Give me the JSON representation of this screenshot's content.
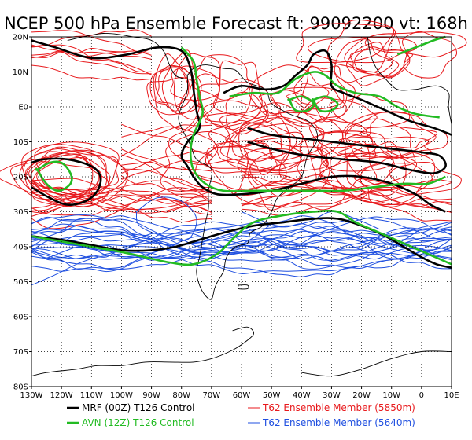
{
  "title": "NCEP 500 hPa Ensemble Forecast  ft: 99092200 vt: 168h",
  "map": {
    "lon_range": [
      -130,
      10
    ],
    "lat_range": [
      -80,
      20
    ],
    "grid_style": "dotted",
    "lat_ticks": [
      {
        "lat": 20,
        "label": "20N"
      },
      {
        "lat": 10,
        "label": "10N"
      },
      {
        "lat": 0,
        "label": "E0"
      },
      {
        "lat": -10,
        "label": "10S"
      },
      {
        "lat": -20,
        "label": "20S"
      },
      {
        "lat": -30,
        "label": "30S"
      },
      {
        "lat": -40,
        "label": "40S"
      },
      {
        "lat": -50,
        "label": "50S"
      },
      {
        "lat": -60,
        "label": "60S"
      },
      {
        "lat": -70,
        "label": "70S"
      },
      {
        "lat": -80,
        "label": "80S"
      }
    ],
    "lon_ticks": [
      {
        "lon": -130,
        "label": "130W"
      },
      {
        "lon": -120,
        "label": "120W"
      },
      {
        "lon": -110,
        "label": "110W"
      },
      {
        "lon": -100,
        "label": "100W"
      },
      {
        "lon": -90,
        "label": "90W"
      },
      {
        "lon": -80,
        "label": "80W"
      },
      {
        "lon": -70,
        "label": "70W"
      },
      {
        "lon": -60,
        "label": "60W"
      },
      {
        "lon": -50,
        "label": "50W"
      },
      {
        "lon": -40,
        "label": "40W"
      },
      {
        "lon": -30,
        "label": "30W"
      },
      {
        "lon": -20,
        "label": "20W"
      },
      {
        "lon": -10,
        "label": "10W"
      },
      {
        "lon": 0,
        "label": "0"
      },
      {
        "lon": 10,
        "label": "10E"
      }
    ]
  },
  "legend": [
    {
      "label": "MRF (00Z) T126 Control",
      "color": "#000000",
      "width": 2.5
    },
    {
      "label": "T62 Ensemble Member (5850m)",
      "color": "#e8191c",
      "width": 1
    },
    {
      "label": "AVN (12Z) T126 Control",
      "color": "#22bb22",
      "width": 2.5
    },
    {
      "label": "T62 Ensemble Member (5640m)",
      "color": "#1f4fe0",
      "width": 1
    }
  ]
}
